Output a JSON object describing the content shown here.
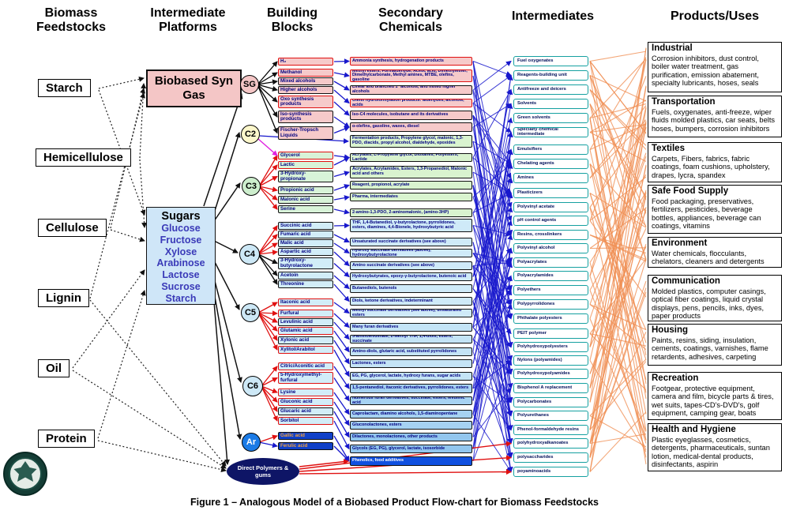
{
  "headers": [
    "Biomass Feedstocks",
    "Intermediate Platforms",
    "Building Blocks",
    "Secondary Chemicals",
    "Intermediates",
    "Products/Uses"
  ],
  "feedstocks": [
    "Starch",
    "Hemicellulose",
    "Cellulose",
    "Lignin",
    "Oil",
    "Protein"
  ],
  "platforms": {
    "syngas": "Biobased Syn Gas",
    "sugars_title": "Sugars",
    "sugars_items": [
      "Glucose",
      "Fructose",
      "Xylose",
      "Arabinose",
      "Lactose",
      "Sucrose",
      "Starch"
    ]
  },
  "building_blocks": {
    "direct": "Direct Polymers & gums",
    "groups": [
      {
        "id": "SG",
        "label": "SG",
        "boxes": [
          {
            "label": "H₂",
            "v": "g-pink b-red"
          },
          {
            "label": "Methanol",
            "v": "g-pink b-red"
          },
          {
            "label": "Mixed alcohols",
            "v": "g-pink b-black"
          },
          {
            "label": "Higher alcohols",
            "v": "g-pink b-black"
          },
          {
            "label": "Oxo synthesis products",
            "v": "g-pink b-red"
          },
          {
            "label": "Iso-synthesis products",
            "v": "g-pink b-black"
          },
          {
            "label": "Fischer-Tropsch Liquids",
            "v": "g-pink b-black"
          }
        ]
      },
      {
        "id": "C2",
        "label": "C2",
        "boxes": []
      },
      {
        "id": "C3",
        "label": "C3",
        "boxes": [
          {
            "label": "Glycerol",
            "v": "g-green b-red"
          },
          {
            "label": "Lactic",
            "v": "g-green b-red"
          },
          {
            "label": "3-Hydroxy-propionate",
            "v": "g-green b-black"
          },
          {
            "label": "Propionic acid",
            "v": "g-green b-black"
          },
          {
            "label": "Malonic acid",
            "v": "g-green b-black"
          },
          {
            "label": "Serine",
            "v": "g-green b-black"
          }
        ]
      },
      {
        "id": "C4",
        "label": "C4",
        "boxes": [
          {
            "label": "Succinic acid",
            "v": "g-blue b-black"
          },
          {
            "label": "Fumaric acid",
            "v": "g-blue b-black"
          },
          {
            "label": "Malic acid",
            "v": "g-blue b-black"
          },
          {
            "label": "Aspartic acid",
            "v": "g-blue b-black"
          },
          {
            "label": "3-Hydroxy-butyrolactone",
            "v": "g-blue b-black"
          },
          {
            "label": "Acetoin",
            "v": "g-blue b-black"
          },
          {
            "label": "Threonine",
            "v": "g-blue b-black"
          }
        ]
      },
      {
        "id": "C5",
        "label": "C5",
        "boxes": [
          {
            "label": "Itaconic acid",
            "v": "g-blue b-red"
          },
          {
            "label": "Furfural",
            "v": "g-blue b-red"
          },
          {
            "label": "Levulinic acid",
            "v": "g-blue b-black"
          },
          {
            "label": "Glutamic acid",
            "v": "g-blue b-red"
          },
          {
            "label": "Xylonic acid",
            "v": "g-blue b-black"
          },
          {
            "label": "Xylitol/Arabitol",
            "v": "g-blue b-red"
          }
        ]
      },
      {
        "id": "C6",
        "label": "C6",
        "boxes": [
          {
            "label": "Citric/Aconitic acid",
            "v": "g-blue b-red"
          },
          {
            "label": "5-Hydroxymethyl-furfural",
            "v": "g-blue b-red"
          },
          {
            "label": "Lysine",
            "v": "g-blue b-red"
          },
          {
            "label": "Gluconic acid",
            "v": "g-blue b-red"
          },
          {
            "label": "Glucaric acid",
            "v": "g-blue b-black"
          },
          {
            "label": "Sorbitol",
            "v": "g-blue b-red"
          }
        ]
      },
      {
        "id": "Ar",
        "label": "Ar",
        "boxes": [
          {
            "label": "Gallic acid",
            "v": "g-ar b-black"
          },
          {
            "label": "Ferulic acid",
            "v": "g-ar b-black"
          }
        ]
      }
    ]
  },
  "secondary_chemicals": [
    {
      "label": "Ammonia synthesis, hydrogenation products",
      "v": "f-pink b-red"
    },
    {
      "label": "Methyl esters, Formaldehyde, Acetic acid, Dimethylether, Dimethylcarbonate, Methyl amines, MTBE, olefins, gasoline",
      "v": "f-pink b-red"
    },
    {
      "label": "Linear and branched 1° alcohols, and mixed higher alcohols",
      "v": "f-pink b-black"
    },
    {
      "label": "Olefin hydroformylation products: aldehydes, alcohols, acids",
      "v": "f-pink b-red"
    },
    {
      "label": "Iso-C4 molecules, isobutane and its derivatives",
      "v": "f-pink b-black"
    },
    {
      "label": "α-olefins, gasoline, waxes, diesel",
      "v": "f-pink b-black"
    },
    {
      "label": "Fermentation products, Propylene glycol, malonic, 1,3-PDO, diacids, propyl alcohol, dialdehyde, epoxides",
      "v": "f-green b-black"
    },
    {
      "label": "Acrylates, L-Propylene glycol, Dioxanes, Polyesters, Lactide",
      "v": "f-green b-black"
    },
    {
      "label": "Acrylates, Acrylamides, Esters, 1,3-Propanediol, Malonic acid and others",
      "v": "f-green b-black"
    },
    {
      "label": "Reagent, propionol, acrylate",
      "v": "f-green b-black"
    },
    {
      "label": "Pharma, intermediates",
      "v": "f-green b-black"
    },
    {
      "label": "2-amino-1,3-PDO, 2-aminomalonic, (amino-3HP)",
      "v": "f-green b-black"
    },
    {
      "label": "THF, 1,4-Butanediol, γ-butyrolactone, pyrrolidones, esters, diamines, 4,4-Bionele, hydroxybutyric acid",
      "v": "f-b1 b-black"
    },
    {
      "label": "Unsaturated succinate derivatives (see above)",
      "v": "f-b1 b-black"
    },
    {
      "label": "Hydroxy succinate derivatives (above), hydroxybutyrolactone",
      "v": "f-b1 b-black"
    },
    {
      "label": "Amino succinate derivatives (see above)",
      "v": "f-b1 b-black"
    },
    {
      "label": "Hydroxybutyrates, epoxy-γ-butyrolactone, butenoic acid",
      "v": "f-b1 b-black"
    },
    {
      "label": "Butanediols, butenols",
      "v": "f-b1 b-black"
    },
    {
      "label": "Diols, ketone derivatives, indeterminant",
      "v": "f-b1 b-black"
    },
    {
      "label": "Methyl succinate derivatives (see above), unsaturated esters",
      "v": "f-b1 b-black"
    },
    {
      "label": "Many furan derivatives",
      "v": "f-b2 b-black"
    },
    {
      "label": "5-aminolevulinate, 2-Methyl THF, 1,4-diols, esters, succinate",
      "v": "f-b2 b-black"
    },
    {
      "label": "Amino-diols, glutaric acid, substituted pyrrolidones",
      "v": "f-b2 b-black"
    },
    {
      "label": "Lactones, esters",
      "v": "f-b2 b-black"
    },
    {
      "label": "EG, PG, glycerol, lactate, hydroxy furans, sugar acids",
      "v": "f-b2 b-black"
    },
    {
      "label": "1,5-pentanediol, itaconic derivatives, pyrrolidones, esters",
      "v": "f-b3 b-black"
    },
    {
      "label": "Numerous furan derivatives, succinate, esters, levulinic acid",
      "v": "f-b3 b-black"
    },
    {
      "label": "Caprolactam, diamino alcohols, 1,5-diaminopentane",
      "v": "f-b3 b-black"
    },
    {
      "label": "Gluconolactones, esters",
      "v": "f-b3 b-black"
    },
    {
      "label": "Dilactones, monolactones, other products",
      "v": "f-b4 b-black"
    },
    {
      "label": "Glycols (EG, PG), glycerol, lactate, isosorbide",
      "v": "f-b4 b-black"
    },
    {
      "label": "Phenolics, food additives",
      "v": "f-deep b-black"
    }
  ],
  "intermediates": [
    "Fuel oxygenates",
    "Reagents-building unit",
    "Antifreeze and deicers",
    "Solvents",
    "Green solvents",
    "Specialty chemical intermediate",
    "Emulsifiers",
    "Chelating agents",
    "Amines",
    "Plasticizers",
    "Polyvinyl acetate",
    "pH control agents",
    "Resins, crosslinkers",
    "Polyvinyl alcohol",
    "Polyacrylates",
    "Polyacrylamides",
    "Polyethers",
    "Polypyrrolidones",
    "Phthalate polyesters",
    "PEIT polymer",
    "Polyhydroxypolyesters",
    "Nylons (polyamides)",
    "Polyhydroxypolyamides",
    "Bisphenol A replacement",
    "Polycarbonates",
    "Polyurethanes",
    "Phenol-formaldehyde resins",
    "polyhydroxyalkanoates",
    "polysaccharides",
    "poyaminoacids"
  ],
  "products": [
    {
      "title": "Industrial",
      "body": "Corrosion inhibitors, dust control, boiler water treatment, gas purification, emission abatement, specialty lubricants, hoses, seals"
    },
    {
      "title": "Transportation",
      "body": "Fuels, oxygenates, anti-freeze, wiper fluids molded plastics, car seats, belts hoses, bumpers, corrosion inhibitors"
    },
    {
      "title": "Textiles",
      "body": "Carpets, Fibers, fabrics, fabric coatings, foam cushions, upholstery, drapes, lycra, spandex"
    },
    {
      "title": "Safe Food Supply",
      "body": "Food packaging, preservatives, fertilizers, pesticides, beverage bottles, appliances, beverage can coatings, vitamins"
    },
    {
      "title": "Environment",
      "body": "Water chemicals, flocculants, chelators, cleaners and detergents"
    },
    {
      "title": "Communication",
      "body": "Molded plastics, computer casings, optical fiber coatings, liquid crystal displays, pens, pencils, inks, dyes, paper products"
    },
    {
      "title": "Housing",
      "body": "Paints, resins, siding, insulation, cements, coatings, varnishes, flame retardents, adhesives, carpeting"
    },
    {
      "title": "Recreation",
      "body": "Footgear, protective equipment, camera and film, bicycle parts & tires, wet suits, tapes-CD's-DVD's, golf equipment, camping gear, boats"
    },
    {
      "title": "Health and Hygiene",
      "body": "Plastic eyeglasses, cosmetics, detergents, pharmaceuticals, suntan lotion, medical-dental products, disinfectants, aspirin"
    }
  ],
  "caption": "Figure 1 – Analogous Model of a Biobased Product Flow-chart for Biomass Feedstocks",
  "colors": {
    "line_blue": "#1818cc",
    "line_red": "#e01010",
    "line_orange": "#f09055",
    "teal_border": "#15a0a0",
    "navy_text": "#000080"
  }
}
